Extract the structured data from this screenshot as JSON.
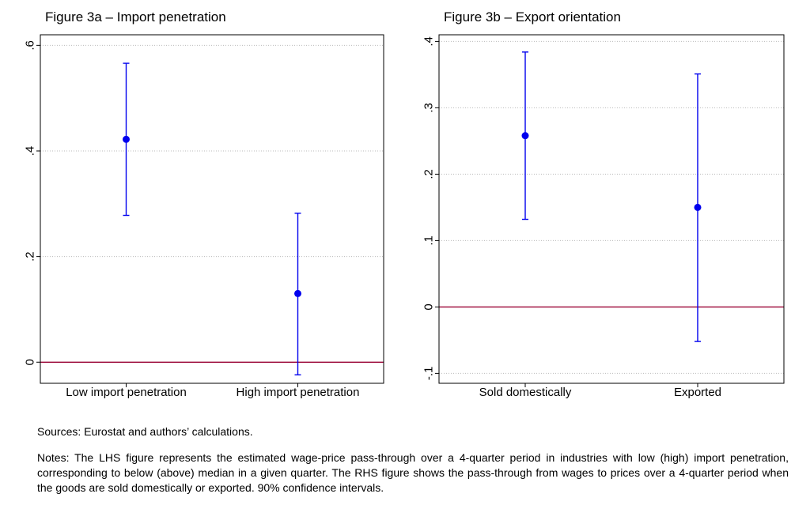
{
  "chart_data": [
    {
      "type": "scatter",
      "title": "Figure 3a – Import penetration",
      "categories": [
        "Low import penetration",
        "High import penetration"
      ],
      "series": [
        {
          "values": [
            0.422,
            0.13
          ],
          "ci_low": [
            0.278,
            -0.024
          ],
          "ci_high": [
            0.566,
            0.282
          ]
        }
      ],
      "ylim": [
        -0.04,
        0.62
      ],
      "yticks": [
        0,
        0.2,
        0.4,
        0.6
      ],
      "ytick_labels": [
        "0",
        ".2",
        ".4",
        ".6"
      ],
      "reference_line": 0,
      "grid": true,
      "xlabel": "",
      "ylabel": ""
    },
    {
      "type": "scatter",
      "title": "Figure 3b – Export orientation",
      "categories": [
        "Sold domestically",
        "Exported"
      ],
      "series": [
        {
          "values": [
            0.258,
            0.15
          ],
          "ci_low": [
            0.132,
            -0.052
          ],
          "ci_high": [
            0.384,
            0.351
          ]
        }
      ],
      "ylim": [
        -0.115,
        0.41
      ],
      "yticks": [
        -0.1,
        0,
        0.1,
        0.2,
        0.3,
        0.4
      ],
      "ytick_labels": [
        "-.1",
        "0",
        ".1",
        ".2",
        ".3",
        ".4"
      ],
      "reference_line": 0,
      "grid": true,
      "xlabel": "",
      "ylabel": ""
    }
  ],
  "colors": {
    "marker": "#0000ee",
    "reference_line": "#990033",
    "grid": "#bbbbbb"
  },
  "footer": {
    "sources": "Sources: Eurostat and authors’ calculations.",
    "notes": "Notes: The LHS figure represents the estimated wage-price pass-through over a 4-quarter period in industries with low (high) import penetration, corresponding to below (above) median in a given quarter. The RHS figure shows the pass-through from wages to prices over a 4-quarter period when the goods are sold domestically or exported. 90% confidence intervals."
  }
}
